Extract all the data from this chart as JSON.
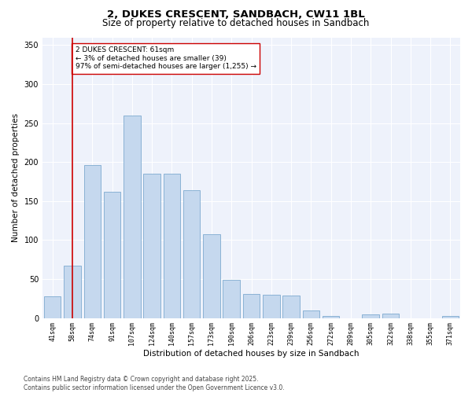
{
  "title": "2, DUKES CRESCENT, SANDBACH, CW11 1BL",
  "subtitle": "Size of property relative to detached houses in Sandbach",
  "xlabel": "Distribution of detached houses by size in Sandbach",
  "ylabel": "Number of detached properties",
  "categories": [
    "41sqm",
    "58sqm",
    "74sqm",
    "91sqm",
    "107sqm",
    "124sqm",
    "140sqm",
    "157sqm",
    "173sqm",
    "190sqm",
    "206sqm",
    "223sqm",
    "239sqm",
    "256sqm",
    "272sqm",
    "289sqm",
    "305sqm",
    "322sqm",
    "338sqm",
    "355sqm",
    "371sqm"
  ],
  "values": [
    28,
    67,
    196,
    162,
    260,
    185,
    185,
    164,
    107,
    49,
    31,
    30,
    29,
    10,
    3,
    0,
    5,
    6,
    0,
    0,
    3
  ],
  "bar_color": "#c5d8ee",
  "bar_edge_color": "#6b9ec8",
  "vline_x_index": 1,
  "vline_color": "#cc0000",
  "annotation_text": "2 DUKES CRESCENT: 61sqm\n← 3% of detached houses are smaller (39)\n97% of semi-detached houses are larger (1,255) →",
  "annotation_box_edge": "#cc0000",
  "background_color": "#eef2fb",
  "ylim": [
    0,
    360
  ],
  "yticks": [
    0,
    50,
    100,
    150,
    200,
    250,
    300,
    350
  ],
  "footer": "Contains HM Land Registry data © Crown copyright and database right 2025.\nContains public sector information licensed under the Open Government Licence v3.0.",
  "title_fontsize": 9.5,
  "subtitle_fontsize": 8.5,
  "axis_label_fontsize": 7.5,
  "tick_fontsize": 6,
  "annotation_fontsize": 6.5,
  "footer_fontsize": 5.5
}
